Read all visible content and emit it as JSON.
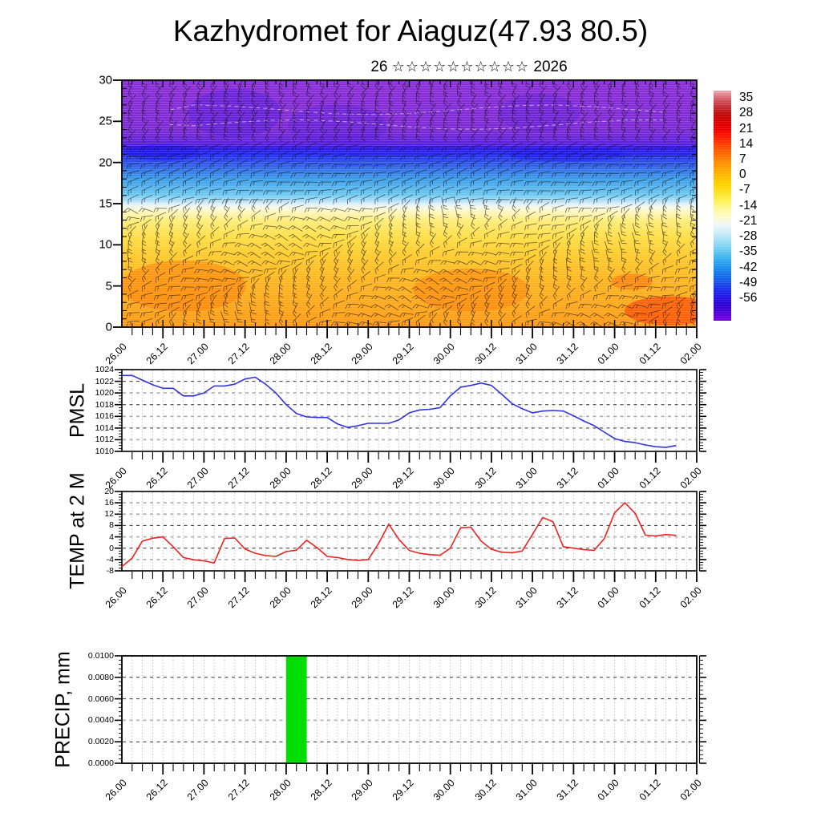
{
  "title": "Kazhydromet for Aiaguz(47.93 80.5)",
  "subtitle": {
    "day": "26",
    "stars": "☆☆☆☆☆☆☆☆☆☆",
    "year": "2026"
  },
  "time_axis": {
    "labels": [
      "26.00",
      "26.12",
      "27.00",
      "27.12",
      "28.00",
      "28.12",
      "29.00",
      "29.12",
      "30.00",
      "30.12",
      "31.00",
      "31.12",
      "01.00",
      "01.12",
      "02.00"
    ],
    "major_step_hours": 12,
    "minor_step_hours": 3,
    "total_hours": 168
  },
  "chart_data": [
    {
      "type": "heatmap",
      "name": "temperature-height cross-section with wind barbs",
      "y_ticks": [
        0,
        5,
        10,
        15,
        20,
        25,
        30
      ],
      "y_range": [
        0,
        30
      ],
      "x_tick_labels": "time_axis.labels",
      "grid": false,
      "overlay": "dense wind barbs over whole field, faint white dashed contours in upper purple zone",
      "colorbar": {
        "position": "right",
        "tick_values": [
          35,
          28,
          21,
          14,
          7,
          0,
          -7,
          -14,
          -21,
          -28,
          -35,
          -42,
          -49,
          -56
        ],
        "colors_bottom_to_top": [
          "#7a00e0",
          "#5000d8",
          "#2e00d0",
          "#2214e6",
          "#1c30ec",
          "#1858e8",
          "#1478e8",
          "#2098ee",
          "#40b4f0",
          "#70ccf2",
          "#a0dcf5",
          "#c8ecf8",
          "#ecf6f8",
          "#fdfbd0",
          "#fff89e",
          "#fff25c",
          "#ffe42c",
          "#ffd400",
          "#ffc000",
          "#ffa800",
          "#ff8c00",
          "#ff6a00",
          "#ff4600",
          "#ff2000",
          "#f00000",
          "#d80000",
          "#c00808",
          "#c43038",
          "#d4606a",
          "#ecacb4"
        ]
      },
      "field_gradient_top_to_bottom": [
        [
          "0%",
          "#8b2ed8"
        ],
        [
          "20%",
          "#7d2ad4"
        ],
        [
          "25.7%",
          "#5b21dc"
        ],
        [
          "27.5%",
          "#2f17e8"
        ],
        [
          "30%",
          "#2328f0"
        ],
        [
          "33.5%",
          "#2e54ea"
        ],
        [
          "40%",
          "#3b9ce8"
        ],
        [
          "46.5%",
          "#6ecaf2"
        ],
        [
          "48.7%",
          "#abdff7"
        ],
        [
          "50%",
          "#dbeefb"
        ],
        [
          "51.5%",
          "#f6fbe8"
        ],
        [
          "53.3%",
          "#fff7c0"
        ],
        [
          "57%",
          "#ffec78"
        ],
        [
          "63%",
          "#ffdf4a"
        ],
        [
          "70%",
          "#ffcd30"
        ],
        [
          "80%",
          "#ffb822"
        ],
        [
          "93%",
          "#ffa51a"
        ],
        [
          "100%",
          "#ff9916"
        ]
      ],
      "bands_top_to_bottom": [
        {
          "y_range": [
            22,
            30
          ],
          "approx_temp_c": "below -56",
          "color_name": "purple"
        },
        {
          "y_range": [
            20,
            22
          ],
          "approx_temp_c": "-49 to -56",
          "color_name": "deep blue"
        },
        {
          "y_range": [
            16,
            20
          ],
          "approx_temp_c": "-21 to -45",
          "color_name": "light blue"
        },
        {
          "y_range": [
            14.5,
            16
          ],
          "approx_temp_c": "about -14",
          "color_name": "pale blue-white"
        },
        {
          "y_range": [
            13,
            14.5
          ],
          "approx_temp_c": "-7 to -14",
          "color_name": "pale yellow"
        },
        {
          "y_range": [
            9,
            13
          ],
          "approx_temp_c": "-7 to 0",
          "color_name": "yellow"
        },
        {
          "y_range": [
            0,
            9
          ],
          "approx_temp_c": "0 to 14",
          "color_name": "orange"
        },
        {
          "y_range": [
            0,
            4
          ],
          "x_range_labels": [
            "01.00",
            "02.00"
          ],
          "approx_temp_c": "14 to 21",
          "color_name": "red-orange"
        }
      ]
    },
    {
      "type": "line",
      "ylabel": "PMSL",
      "line_color": "#3333dd",
      "y_ticks": [
        1024,
        1022,
        1020,
        1018,
        1016,
        1014,
        1012,
        1010
      ],
      "y_range": [
        1010,
        1024
      ],
      "x_start_label": "26.00",
      "x_step_hours": 3,
      "values": [
        1023.0,
        1023.0,
        1022.2,
        1021.4,
        1020.8,
        1020.8,
        1019.5,
        1019.5,
        1020.0,
        1021.2,
        1021.2,
        1021.5,
        1022.4,
        1022.7,
        1021.5,
        1020.0,
        1018.0,
        1016.5,
        1015.9,
        1015.8,
        1015.8,
        1014.7,
        1014.1,
        1014.4,
        1014.8,
        1014.8,
        1014.8,
        1015.4,
        1016.6,
        1017.1,
        1017.2,
        1017.5,
        1019.5,
        1021.0,
        1021.3,
        1021.7,
        1021.3,
        1019.8,
        1018.2,
        1017.3,
        1016.6,
        1016.9,
        1017.0,
        1016.9,
        1016.1,
        1015.2,
        1014.4,
        1013.3,
        1012.2,
        1011.7,
        1011.5,
        1011.1,
        1010.8,
        1010.7,
        1011.0
      ]
    },
    {
      "type": "line",
      "ylabel": "TEMP at 2 M",
      "line_color": "#ee2222",
      "y_ticks": [
        20,
        16,
        12,
        8,
        4,
        0,
        -4,
        -8
      ],
      "y_range": [
        -8,
        20
      ],
      "x_start_label": "26.00",
      "x_step_hours": 3,
      "values": [
        -6.5,
        -3.5,
        2.5,
        3.5,
        4.0,
        0.5,
        -3.3,
        -4.1,
        -4.5,
        -5.2,
        3.4,
        3.6,
        -0.3,
        -1.8,
        -2.6,
        -2.9,
        -1.2,
        -0.7,
        2.8,
        0.2,
        -2.9,
        -3.3,
        -4.0,
        -4.3,
        -4.0,
        1.6,
        8.5,
        3.0,
        -0.8,
        -1.8,
        -2.3,
        -2.5,
        0.0,
        7.2,
        7.4,
        2.5,
        -0.4,
        -1.4,
        -1.6,
        -1.0,
        4.8,
        10.8,
        9.3,
        0.5,
        0.0,
        -0.5,
        -0.8,
        3.4,
        12.5,
        16.0,
        12.3,
        4.6,
        4.3,
        4.8,
        4.5
      ]
    },
    {
      "type": "bar",
      "ylabel": "PRECIP, mm",
      "bar_color": "#00dd00",
      "y_tick_labels": [
        "0.0100",
        "0.0080",
        "0.0060",
        "0.0040",
        "0.0020",
        "0.0000"
      ],
      "y_range": [
        0,
        0.01
      ],
      "bars": [
        {
          "from_hour_offset": 48,
          "to_hour_offset": 54,
          "from_label": "28.00",
          "value_mm": 0.01
        }
      ]
    }
  ]
}
